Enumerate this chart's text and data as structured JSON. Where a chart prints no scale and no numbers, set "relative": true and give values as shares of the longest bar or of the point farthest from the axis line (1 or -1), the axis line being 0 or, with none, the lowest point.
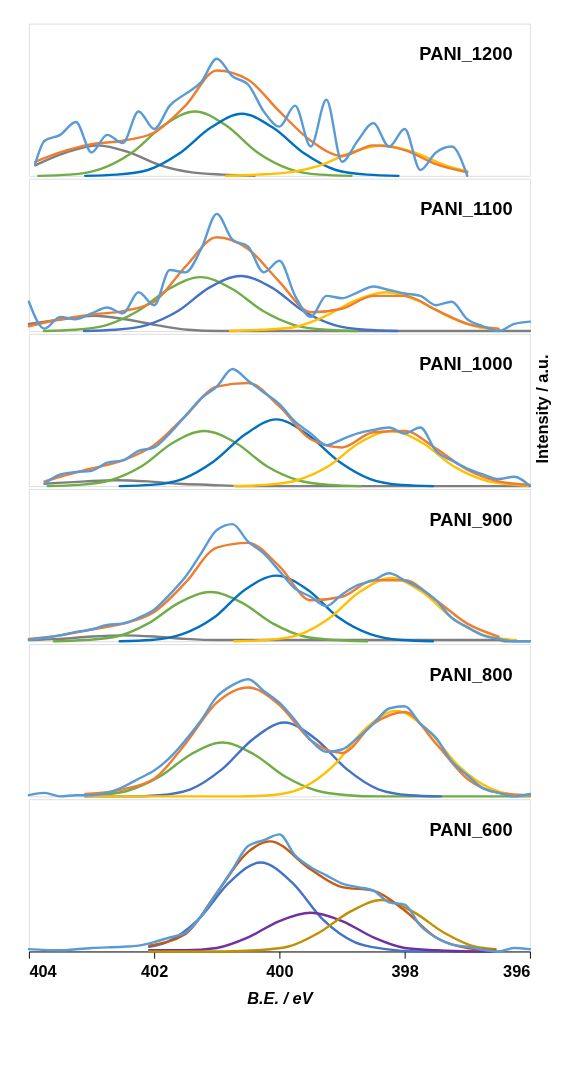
{
  "chart_data": [
    {
      "type": "line",
      "title": "PANI_1200",
      "relative": true,
      "xlim": [
        404,
        396
      ],
      "tick_labels": false,
      "series": [
        {
          "color": "#7f7f7f",
          "x": [
            403.9,
            403.4,
            402.9,
            402.4,
            401.9,
            401.4,
            400.9,
            400.4
          ],
          "values": [
            0.09,
            0.2,
            0.26,
            0.2,
            0.09,
            0.03,
            0.01,
            0
          ]
        },
        {
          "color": "#70ad47",
          "x": [
            403.85,
            403.35,
            402.85,
            402.35,
            401.85,
            401.35,
            400.85,
            400.35,
            399.85,
            399.35,
            398.85
          ],
          "values": [
            0,
            0.01,
            0.06,
            0.2,
            0.43,
            0.55,
            0.43,
            0.2,
            0.06,
            0.01,
            0
          ]
        },
        {
          "color": "#0070c0",
          "x": [
            403.1,
            402.6,
            402.1,
            401.6,
            401.1,
            400.6,
            400.1,
            399.6,
            399.1,
            398.6,
            398.1
          ],
          "values": [
            0,
            0.01,
            0.05,
            0.19,
            0.41,
            0.53,
            0.41,
            0.19,
            0.05,
            0.01,
            0
          ]
        },
        {
          "color": "#ffc000",
          "x": [
            400.85,
            400.35,
            399.85,
            399.35,
            398.85,
            398.35,
            397.85,
            397.35,
            397.0
          ],
          "values": [
            0,
            0.01,
            0.03,
            0.09,
            0.2,
            0.26,
            0.2,
            0.09,
            0.04
          ]
        },
        {
          "color": "#ed7d31",
          "x": [
            403.9,
            403.5,
            403,
            402.5,
            402,
            401.5,
            401,
            400.5,
            400,
            399.5,
            399,
            398.5,
            398,
            397.5,
            397
          ],
          "values": [
            0.12,
            0.2,
            0.27,
            0.3,
            0.37,
            0.6,
            0.9,
            0.82,
            0.55,
            0.3,
            0.17,
            0.26,
            0.22,
            0.1,
            0.03
          ]
        },
        {
          "color": "#5b9bd5",
          "x": [
            403.9,
            403.75,
            403.5,
            403.25,
            403,
            402.75,
            402.5,
            402.25,
            402,
            401.75,
            401.5,
            401.25,
            401,
            400.75,
            400.5,
            400.25,
            400,
            399.75,
            399.5,
            399.25,
            399,
            398.75,
            398.5,
            398.25,
            398,
            397.75,
            397.5,
            397.25,
            397
          ],
          "values": [
            0.1,
            0.3,
            0.35,
            0.46,
            0.2,
            0.35,
            0.28,
            0.55,
            0.4,
            0.6,
            0.7,
            0.8,
            1.0,
            0.85,
            0.78,
            0.55,
            0.42,
            0.6,
            0.25,
            0.65,
            0.12,
            0.3,
            0.45,
            0.25,
            0.4,
            0.05,
            0.2,
            0.25,
            0
          ]
        }
      ]
    },
    {
      "type": "line",
      "title": "PANI_1100",
      "relative": true,
      "xlim": [
        404,
        396
      ],
      "tick_labels": false,
      "series": [
        {
          "color": "#7f7f7f",
          "x": [
            404,
            403.46,
            402.96,
            402.46,
            401.96,
            401.46,
            400.96,
            400.46,
            396.5,
            396.4,
            396
          ],
          "values": [
            0.06,
            0.1,
            0.13,
            0.1,
            0.05,
            0.01,
            0,
            0,
            0,
            0,
            0
          ]
        },
        {
          "color": "#70ad47",
          "x": [
            403.76,
            403.26,
            402.76,
            402.26,
            401.76,
            401.26,
            400.76,
            400.26,
            399.76,
            399.26,
            398.76
          ],
          "values": [
            0,
            0.01,
            0.05,
            0.17,
            0.36,
            0.46,
            0.36,
            0.17,
            0.05,
            0.01,
            0
          ]
        },
        {
          "color": "#4472c4",
          "x": [
            403.12,
            402.62,
            402.12,
            401.62,
            401.12,
            400.62,
            400.12,
            399.62,
            399.12,
            398.62,
            398.12
          ],
          "values": [
            0,
            0.01,
            0.05,
            0.17,
            0.37,
            0.47,
            0.37,
            0.17,
            0.05,
            0.01,
            0
          ]
        },
        {
          "color": "#ffc000",
          "x": [
            400.79,
            400.29,
            399.79,
            399.29,
            398.79,
            398.29,
            397.79,
            397.29,
            396.79,
            396.5
          ],
          "values": [
            0,
            0.01,
            0.03,
            0.12,
            0.26,
            0.33,
            0.26,
            0.12,
            0.03,
            0.01
          ]
        },
        {
          "color": "#ed7d31",
          "x": [
            404,
            403.5,
            403,
            402.5,
            402,
            401.5,
            401,
            400.5,
            400,
            399.5,
            399,
            398.5,
            398,
            397.5,
            397,
            396.5
          ],
          "values": [
            0.04,
            0.1,
            0.14,
            0.17,
            0.25,
            0.55,
            0.8,
            0.7,
            0.42,
            0.16,
            0.19,
            0.3,
            0.3,
            0.18,
            0.06,
            0.02
          ]
        },
        {
          "color": "#5b9bd5",
          "x": [
            404,
            403.75,
            403.5,
            403.25,
            403,
            402.75,
            402.5,
            402.25,
            402,
            401.75,
            401.5,
            401.25,
            401,
            400.75,
            400.5,
            400.25,
            400,
            399.75,
            399.5,
            399.25,
            399,
            398.75,
            398.5,
            398.25,
            398,
            397.75,
            397.5,
            397.25,
            397,
            396.75,
            396.5,
            396.25,
            396
          ],
          "values": [
            0.25,
            0.02,
            0.12,
            0.1,
            0.15,
            0.2,
            0.15,
            0.33,
            0.22,
            0.52,
            0.5,
            0.7,
            1.0,
            0.78,
            0.72,
            0.5,
            0.6,
            0.3,
            0.12,
            0.3,
            0.28,
            0.33,
            0.38,
            0.35,
            0.32,
            0.3,
            0.22,
            0.25,
            0.1,
            0.04,
            0,
            0.06,
            0.08
          ]
        }
      ]
    },
    {
      "type": "line",
      "title": "PANI_1000",
      "ylabel": "Intensity / a.u.",
      "relative": true,
      "xlim": [
        404,
        396
      ],
      "tick_labels": false,
      "series": [
        {
          "color": "#7f7f7f",
          "x": [
            403.75,
            403.1,
            402.6,
            402.1,
            401.6,
            401.1,
            400.6,
            396
          ],
          "values": [
            0.02,
            0.04,
            0.05,
            0.04,
            0.02,
            0.01,
            0,
            0
          ]
        },
        {
          "color": "#70ad47",
          "x": [
            403.7,
            403.2,
            402.7,
            402.2,
            401.7,
            401.2,
            400.7,
            400.2,
            399.7,
            399.2,
            398.7
          ],
          "values": [
            0,
            0.01,
            0.05,
            0.17,
            0.37,
            0.47,
            0.37,
            0.17,
            0.05,
            0.01,
            0
          ]
        },
        {
          "color": "#0070c0",
          "x": [
            402.55,
            402.05,
            401.55,
            401.05,
            400.55,
            400.05,
            399.55,
            399.05,
            398.55,
            398.05,
            397.55
          ],
          "values": [
            0,
            0.01,
            0.06,
            0.21,
            0.44,
            0.57,
            0.44,
            0.21,
            0.06,
            0.01,
            0
          ]
        },
        {
          "color": "#ffc000",
          "x": [
            400.72,
            400.22,
            399.72,
            399.22,
            398.72,
            398.22,
            397.72,
            397.22,
            396.72,
            396.22,
            396
          ],
          "values": [
            0,
            0.01,
            0.05,
            0.17,
            0.37,
            0.47,
            0.37,
            0.17,
            0.05,
            0.01,
            0
          ]
        },
        {
          "color": "#ed7d31",
          "x": [
            403.75,
            403.5,
            403,
            402.5,
            402,
            401.5,
            401,
            400.5,
            400,
            399.5,
            399,
            398.5,
            398,
            397.5,
            397,
            396.5,
            396
          ],
          "values": [
            0.04,
            0.08,
            0.15,
            0.22,
            0.35,
            0.6,
            0.85,
            0.88,
            0.68,
            0.4,
            0.33,
            0.46,
            0.47,
            0.32,
            0.14,
            0.04,
            0.01
          ]
        },
        {
          "color": "#5b9bd5",
          "x": [
            403.75,
            403.5,
            403.25,
            403,
            402.75,
            402.5,
            402.25,
            402,
            401.75,
            401.5,
            401.25,
            401,
            400.75,
            400.5,
            400.25,
            400,
            399.75,
            399.5,
            399.25,
            399,
            398.75,
            398.5,
            398.25,
            398,
            397.75,
            397.5,
            397.25,
            397,
            396.75,
            396.5,
            396.25,
            396
          ],
          "values": [
            0.02,
            0.1,
            0.12,
            0.13,
            0.2,
            0.22,
            0.3,
            0.33,
            0.45,
            0.6,
            0.75,
            0.85,
            1.0,
            0.9,
            0.8,
            0.7,
            0.55,
            0.45,
            0.35,
            0.4,
            0.45,
            0.48,
            0.5,
            0.45,
            0.5,
            0.3,
            0.22,
            0.15,
            0.1,
            0.06,
            0.08,
            0
          ]
        }
      ]
    },
    {
      "type": "line",
      "title": "PANI_900",
      "relative": true,
      "xlim": [
        404,
        396
      ],
      "tick_labels": false,
      "series": [
        {
          "color": "#7f7f7f",
          "x": [
            404,
            403.5,
            403,
            402.5,
            402,
            401.5,
            401,
            396.5,
            396.4,
            396
          ],
          "values": [
            0.01,
            0.02,
            0.04,
            0.05,
            0.04,
            0.02,
            0.01,
            0.01,
            0,
            0
          ]
        },
        {
          "color": "#70ad47",
          "x": [
            403.6,
            403.1,
            402.6,
            402.1,
            401.6,
            401.1,
            400.6,
            400.1,
            399.6,
            399.1,
            398.6
          ],
          "values": [
            0,
            0.01,
            0.04,
            0.15,
            0.33,
            0.42,
            0.33,
            0.15,
            0.04,
            0.01,
            0
          ]
        },
        {
          "color": "#0070c0",
          "x": [
            402.55,
            402.05,
            401.55,
            401.05,
            400.55,
            400.05,
            399.55,
            399.05,
            398.55,
            398.05,
            397.55
          ],
          "values": [
            0,
            0.01,
            0.06,
            0.2,
            0.44,
            0.56,
            0.44,
            0.2,
            0.06,
            0.01,
            0
          ]
        },
        {
          "color": "#ffc000",
          "x": [
            400.72,
            400.22,
            399.72,
            399.22,
            398.72,
            398.22,
            397.72,
            397.22,
            396.72,
            396.22
          ],
          "values": [
            0,
            0.01,
            0.05,
            0.19,
            0.42,
            0.54,
            0.42,
            0.19,
            0.05,
            0.01
          ]
        },
        {
          "color": "#ed7d31",
          "x": [
            404,
            403.5,
            403,
            402.5,
            402,
            401.5,
            401,
            400.5,
            400,
            399.5,
            399,
            398.5,
            398,
            397.5,
            397,
            396.5
          ],
          "values": [
            0.02,
            0.05,
            0.1,
            0.15,
            0.25,
            0.5,
            0.8,
            0.84,
            0.64,
            0.35,
            0.38,
            0.52,
            0.52,
            0.35,
            0.15,
            0.04
          ]
        },
        {
          "color": "#5b9bd5",
          "x": [
            404,
            403.75,
            403.5,
            403.25,
            403,
            402.75,
            402.5,
            402.25,
            402,
            401.75,
            401.5,
            401.25,
            401,
            400.75,
            400.5,
            400.25,
            400,
            399.75,
            399.5,
            399.25,
            399,
            398.75,
            398.5,
            398.25,
            398,
            397.75,
            397.5,
            397.25,
            397,
            396.75,
            396.5,
            396.25,
            396
          ],
          "values": [
            0.01,
            0.03,
            0.05,
            0.08,
            0.1,
            0.14,
            0.15,
            0.2,
            0.27,
            0.4,
            0.55,
            0.75,
            0.95,
            1.0,
            0.85,
            0.75,
            0.6,
            0.45,
            0.38,
            0.3,
            0.4,
            0.48,
            0.52,
            0.58,
            0.52,
            0.45,
            0.35,
            0.2,
            0.12,
            0.05,
            0.02,
            0,
            0
          ]
        }
      ]
    },
    {
      "type": "line",
      "title": "PANI_800",
      "relative": true,
      "xlim": [
        404,
        396
      ],
      "tick_labels": false,
      "series": [
        {
          "color": "#70ad47",
          "x": [
            403.1,
            402.91,
            402.41,
            401.91,
            401.41,
            400.91,
            400.41,
            399.91,
            399.41,
            398.91,
            398.41,
            396
          ],
          "values": [
            0,
            0.01,
            0.05,
            0.17,
            0.36,
            0.46,
            0.36,
            0.17,
            0.05,
            0.01,
            0,
            0
          ]
        },
        {
          "color": "#4472c4",
          "x": [
            403.1,
            402.42,
            401.92,
            401.42,
            400.92,
            400.42,
            399.92,
            399.42,
            398.92,
            398.42,
            397.92,
            397.42
          ],
          "values": [
            0,
            0,
            0.01,
            0.06,
            0.23,
            0.49,
            0.63,
            0.49,
            0.23,
            0.06,
            0.01,
            0
          ]
        },
        {
          "color": "#ffc000",
          "x": [
            403.1,
            400.64,
            400.14,
            399.64,
            399.14,
            398.64,
            398.14,
            397.64,
            397.14,
            396.64,
            396.14,
            396
          ],
          "values": [
            0,
            0,
            0.01,
            0.07,
            0.26,
            0.57,
            0.73,
            0.57,
            0.26,
            0.07,
            0.01,
            0.01
          ]
        },
        {
          "color": "#ed7d31",
          "x": [
            403.1,
            402.5,
            402,
            401.5,
            401,
            400.5,
            400,
            399.5,
            399,
            398.5,
            398,
            397.5,
            397,
            396.5,
            396
          ],
          "values": [
            0.02,
            0.06,
            0.15,
            0.45,
            0.8,
            0.93,
            0.78,
            0.48,
            0.37,
            0.62,
            0.72,
            0.45,
            0.15,
            0.03,
            0.01
          ]
        },
        {
          "color": "#5b9bd5",
          "x": [
            404,
            403.75,
            403.5,
            403.25,
            403,
            402.75,
            402.5,
            402.25,
            402,
            401.75,
            401.5,
            401.25,
            401,
            400.75,
            400.5,
            400.25,
            400,
            399.75,
            399.5,
            399.25,
            399,
            398.75,
            398.5,
            398.25,
            398,
            397.75,
            397.5,
            397.25,
            397,
            396.75,
            396.5,
            396.25,
            396
          ],
          "values": [
            0.01,
            0.03,
            0,
            0.01,
            0.01,
            0.03,
            0.08,
            0.15,
            0.22,
            0.33,
            0.48,
            0.65,
            0.85,
            0.95,
            1.0,
            0.9,
            0.8,
            0.65,
            0.48,
            0.38,
            0.4,
            0.5,
            0.62,
            0.75,
            0.77,
            0.62,
            0.5,
            0.3,
            0.18,
            0.07,
            0.03,
            0.0,
            0.02
          ]
        }
      ]
    },
    {
      "type": "line",
      "title": "PANI_600",
      "xlabel": "B.E. / eV",
      "relative": true,
      "xlim": [
        404,
        396
      ],
      "xticks": [
        404,
        402,
        400,
        398,
        396
      ],
      "tick_labels": "x",
      "series": [
        {
          "color": "#4472c4",
          "x": [
            402.08,
            401.8,
            401.3,
            400.8,
            400.3,
            399.8,
            399.3,
            398.8,
            398.3,
            397.8,
            396.55
          ],
          "values": [
            0.04,
            0.08,
            0.27,
            0.59,
            0.76,
            0.59,
            0.27,
            0.08,
            0.02,
            0,
            0
          ]
        },
        {
          "color": "#7030a0",
          "x": [
            402.08,
            401.5,
            401,
            400.5,
            400,
            399.5,
            399,
            398.5,
            398,
            397.5,
            397,
            396.55
          ],
          "values": [
            0.01,
            0.01,
            0.03,
            0.12,
            0.26,
            0.33,
            0.26,
            0.12,
            0.03,
            0.01,
            0,
            0
          ]
        },
        {
          "color": "#bf9000",
          "x": [
            402.08,
            400.87,
            400.37,
            399.87,
            399.37,
            398.87,
            398.37,
            397.87,
            397.37,
            396.87,
            396.55
          ],
          "values": [
            0,
            0,
            0.01,
            0.04,
            0.16,
            0.34,
            0.44,
            0.34,
            0.16,
            0.04,
            0.02
          ]
        },
        {
          "color": "#c55a11",
          "x": [
            402.08,
            401.5,
            401,
            400.5,
            400.15,
            399.5,
            399,
            398.5,
            398,
            397.5,
            397,
            396.55
          ],
          "values": [
            0.05,
            0.15,
            0.5,
            0.85,
            0.94,
            0.7,
            0.55,
            0.52,
            0.35,
            0.12,
            0.03,
            0.01
          ]
        },
        {
          "color": "#5b9bd5",
          "x": [
            404,
            403.5,
            403,
            402.5,
            402.25,
            402,
            401.75,
            401.5,
            401.25,
            401,
            400.75,
            400.5,
            400.25,
            400,
            399.75,
            399.5,
            399.25,
            399,
            398.75,
            398.5,
            398.25,
            398,
            397.75,
            397.5,
            397.25,
            397,
            396.5,
            396.25,
            396
          ],
          "values": [
            0.02,
            0.01,
            0.03,
            0.04,
            0.05,
            0.08,
            0.12,
            0.16,
            0.3,
            0.5,
            0.7,
            0.9,
            0.95,
            1.0,
            0.82,
            0.72,
            0.65,
            0.58,
            0.55,
            0.52,
            0.42,
            0.4,
            0.22,
            0.12,
            0.06,
            0.04,
            0.0,
            0.03,
            0.02
          ]
        }
      ]
    }
  ]
}
